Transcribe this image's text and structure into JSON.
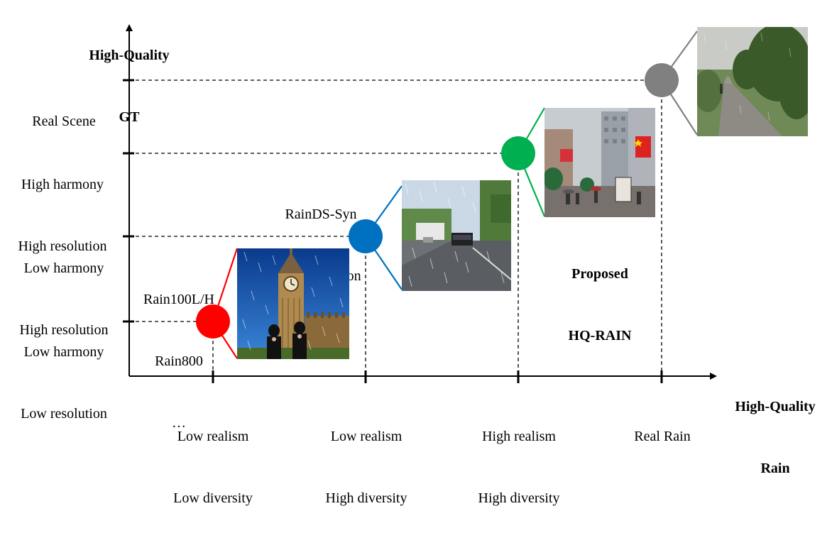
{
  "y_axis": {
    "title_line1": "High-Quality",
    "title_line2": "GT"
  },
  "x_axis": {
    "title_line1": "High-Quality",
    "title_line2": "Rain"
  },
  "y_levels": [
    {
      "line1": "Low harmony",
      "line2": "Low resolution"
    },
    {
      "line1": "Low harmony",
      "line2": "High resolution"
    },
    {
      "line1": "High harmony",
      "line2": "High resolution"
    },
    {
      "line1": "Real Scene",
      "line2": ""
    }
  ],
  "x_levels": [
    {
      "line1": "Low realism",
      "line2": "Low diversity"
    },
    {
      "line1": "Low realism",
      "line2": "High diversity"
    },
    {
      "line1": "High realism",
      "line2": "High diversity"
    },
    {
      "line1": "Real Rain",
      "line2": ""
    }
  ],
  "datasets": [
    {
      "lines": [
        "Rain100L/H",
        "Rain800",
        "…"
      ],
      "color": "#ff0000",
      "image": "big-ben-synthetic-rain"
    },
    {
      "lines": [
        "RainDS-Syn",
        "RainDirection",
        "…"
      ],
      "color": "#0070c0",
      "image": "road-synthetic-rain"
    },
    {
      "lines": [
        "Proposed",
        "HQ-RAIN"
      ],
      "color": "#00b050",
      "image": "city-street-rain"
    },
    {
      "lines": [],
      "color": "#808080",
      "image": "real-rain-path"
    }
  ]
}
